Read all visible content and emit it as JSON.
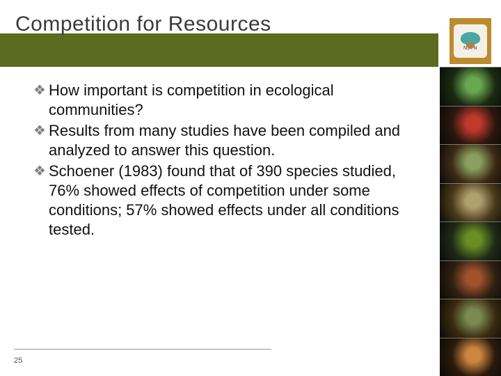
{
  "title": "Competition for Resources",
  "band_color": "#5c6b1f",
  "logo": {
    "label": "NJTN"
  },
  "bullets": [
    "How important is competition in ecological communities?",
    "Results from many studies have been compiled and analyzed to answer this question.",
    "Schoener (1983) found that of 390 species studied, 76% showed effects of competition under some conditions; 57% showed effects under all conditions tested."
  ],
  "bullet_glyph": "❖",
  "bullet_glyph_color": "#7f7f7f",
  "text_color": "#111111",
  "page_number": "25",
  "photo_strip_colors": [
    "#1a2a12",
    "#2a170d",
    "#3d2a14",
    "#4a3a1a",
    "#1f2a18",
    "#2f2012",
    "#3a2a10",
    "#2a1a0c"
  ],
  "photo_accent_colors": [
    "#6aa84f",
    "#c0392b",
    "#8aa060",
    "#b0a070",
    "#6b8e23",
    "#a0522d",
    "#7a8a50",
    "#cd853f"
  ]
}
